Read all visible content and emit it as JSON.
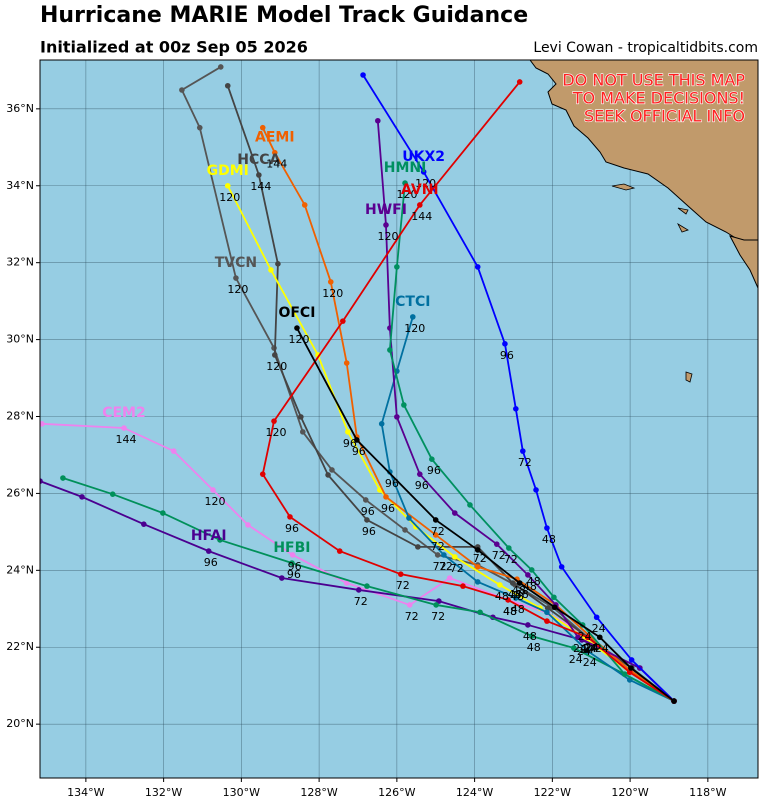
{
  "chart_data": {
    "type": "track",
    "title": "Hurricane MARIE Model Track Guidance",
    "subtitle": "Initialized at 00z Sep 05 2026",
    "credit": "Levi Cowan - tropicaltidbits.com",
    "annotations": [
      "DO NOT USE THIS MAP",
      "TO MAKE DECISIONS!",
      "SEEK OFFICIAL INFO"
    ],
    "xlim": [
      -135.18,
      -116.71
    ],
    "ylim": [
      18.6,
      37.27
    ],
    "grid": true,
    "xticks": [
      {
        "value": -134,
        "label": "134°W"
      },
      {
        "value": -132,
        "label": "132°W"
      },
      {
        "value": -130,
        "label": "130°W"
      },
      {
        "value": -128,
        "label": "128°W"
      },
      {
        "value": -126,
        "label": "126°W"
      },
      {
        "value": -124,
        "label": "124°W"
      },
      {
        "value": -122,
        "label": "122°W"
      },
      {
        "value": -120,
        "label": "120°W"
      },
      {
        "value": -118,
        "label": "118°W"
      }
    ],
    "yticks": [
      {
        "value": 20,
        "label": "20°N"
      },
      {
        "value": 22,
        "label": "22°N"
      },
      {
        "value": 24,
        "label": "24°N"
      },
      {
        "value": 26,
        "label": "26°N"
      },
      {
        "value": 28,
        "label": "28°N"
      },
      {
        "value": 30,
        "label": "30°N"
      },
      {
        "value": 32,
        "label": "32°N"
      },
      {
        "value": 34,
        "label": "34°N"
      },
      {
        "value": 36,
        "label": "36°N"
      }
    ],
    "series": [
      {
        "name": "CEM2",
        "color": "#ee82ee",
        "x": [
          -118.87,
          -119.96,
          -121.04,
          -122.12,
          -123.14,
          -124.64,
          -125.67,
          -127.29,
          -128.68,
          -129.83,
          -130.73,
          -131.74,
          -133.02,
          -135.13
        ],
        "values": [
          20.6,
          21.35,
          22.26,
          22.89,
          23.23,
          23.8,
          23.1,
          23.67,
          24.4,
          25.18,
          26.09,
          27.1,
          27.7,
          27.81
        ],
        "hour_labels": [
          null,
          null,
          "24",
          null,
          "48",
          null,
          "72",
          null,
          "96",
          null,
          "120",
          null,
          "144",
          null
        ]
      },
      {
        "name": "HFAI",
        "color": "#4b0090",
        "x": [
          -118.87,
          -119.75,
          -121.24,
          -122.63,
          -123.53,
          -124.92,
          -126.98,
          -128.96,
          -130.84,
          -132.51,
          -134.1,
          -135.18
        ],
        "values": [
          20.6,
          21.46,
          22.19,
          22.58,
          22.78,
          23.2,
          23.49,
          23.8,
          24.5,
          25.2,
          25.91,
          26.32
        ],
        "hour_labels": [
          null,
          null,
          "24",
          "48",
          null,
          null,
          "72",
          null,
          "96",
          null,
          null,
          null
        ]
      },
      {
        "name": "HFBI",
        "color": "#00905a",
        "x": [
          -118.87,
          -120.14,
          -121.45,
          -122.53,
          -123.86,
          -124.99,
          -126.77,
          -128.7,
          -130.55,
          -132.02,
          -133.31,
          -134.59
        ],
        "values": [
          20.6,
          21.3,
          21.98,
          22.29,
          22.91,
          23.1,
          23.59,
          24.19,
          24.79,
          25.49,
          25.98,
          26.4
        ],
        "hour_labels": [
          null,
          null,
          "24",
          "48",
          null,
          "72",
          null,
          "96",
          null,
          null,
          null,
          null
        ]
      },
      {
        "name": "TVCN",
        "color": "#555555",
        "x": [
          -118.87,
          -119.96,
          -121.09,
          -121.99,
          -122.96,
          -123.92,
          -124.95,
          -125.79,
          -126.8,
          -127.67,
          -128.42,
          -129.16,
          -130.14,
          -131.07,
          -131.53,
          -130.53
        ],
        "values": [
          20.6,
          21.46,
          22.26,
          23.04,
          23.62,
          24.14,
          24.4,
          25.05,
          25.83,
          26.61,
          27.6,
          29.78,
          31.6,
          35.51,
          36.49,
          37.09
        ],
        "hour_labels": [
          null,
          null,
          "24",
          null,
          "48",
          null,
          "72",
          null,
          "96",
          null,
          null,
          null,
          "120",
          null,
          null,
          null
        ]
      },
      {
        "name": "HCCA",
        "color": "#444444",
        "x": [
          -118.87,
          -119.96,
          -121.09,
          -122.12,
          -123.02,
          -123.92,
          -125.46,
          -126.77,
          -127.77,
          -128.47,
          -129.14,
          -129.06,
          -129.55,
          -130.35
        ],
        "values": [
          20.6,
          21.46,
          22.26,
          23.02,
          23.67,
          24.61,
          24.61,
          25.31,
          26.48,
          27.99,
          29.6,
          31.97,
          34.28,
          36.6
        ],
        "hour_labels": [
          null,
          null,
          "24",
          null,
          "48",
          "72",
          null,
          "96",
          null,
          null,
          "120",
          null,
          "144",
          null
        ]
      },
      {
        "name": "GDMI",
        "color": "#ffff00",
        "x": [
          -118.87,
          -120.01,
          -121.16,
          -122.32,
          -123.35,
          -124.51,
          -125.51,
          -126.44,
          -127.26,
          -128.03,
          -129.24,
          -130.35
        ],
        "values": [
          20.6,
          21.35,
          22.24,
          23.02,
          23.62,
          24.35,
          25.13,
          26.09,
          27.6,
          29.6,
          31.81,
          34.0
        ],
        "hour_labels": [
          null,
          null,
          "24",
          null,
          "48",
          "72",
          null,
          null,
          "96",
          null,
          null,
          "120"
        ]
      },
      {
        "name": "AEMI",
        "color": "#f06000",
        "x": [
          -118.87,
          -120.01,
          -121.04,
          -121.91,
          -122.91,
          -123.92,
          -125.0,
          -126.28,
          -127.03,
          -127.29,
          -127.7,
          -128.37,
          -129.14,
          -129.45
        ],
        "values": [
          20.6,
          21.41,
          22.29,
          23.1,
          23.77,
          24.09,
          24.92,
          25.91,
          27.47,
          29.39,
          31.5,
          33.5,
          34.86,
          35.51
        ],
        "hour_labels": [
          null,
          null,
          "24",
          null,
          "48",
          null,
          "72",
          "96",
          null,
          null,
          "120",
          null,
          "144",
          null
        ]
      },
      {
        "name": "CTCI",
        "color": "#0070a0",
        "x": [
          -118.87,
          -120.01,
          -121.09,
          -122.14,
          -122.94,
          -123.92,
          -124.79,
          -125.69,
          -126.18,
          -126.39,
          -126.0,
          -125.59
        ],
        "values": [
          20.6,
          21.15,
          21.9,
          22.91,
          23.28,
          23.7,
          24.4,
          25.36,
          26.56,
          27.81,
          29.18,
          30.59
        ],
        "hour_labels": [
          null,
          null,
          "24",
          null,
          "48",
          null,
          "72",
          null,
          "96",
          null,
          null,
          "120"
        ]
      },
      {
        "name": "HWFI",
        "color": "#5a0090",
        "x": [
          -118.87,
          -119.75,
          -121.34,
          -121.91,
          -122.63,
          -123.43,
          -124.51,
          -125.41,
          -126.0,
          -126.18,
          -126.28,
          -126.49
        ],
        "values": [
          20.6,
          21.46,
          22.26,
          23.1,
          23.88,
          24.68,
          25.49,
          26.5,
          27.99,
          30.3,
          32.98,
          35.69
        ],
        "hour_labels": [
          null,
          null,
          "24",
          null,
          "48",
          "72",
          null,
          "96",
          null,
          null,
          "120",
          null
        ]
      },
      {
        "name": "HMNI",
        "color": "#009060",
        "x": [
          -118.87,
          -120.14,
          -121.22,
          -121.96,
          -122.53,
          -123.12,
          -124.12,
          -125.1,
          -125.82,
          -126.18,
          -126.0,
          -125.79
        ],
        "values": [
          20.6,
          21.3,
          22.58,
          23.3,
          24.01,
          24.58,
          25.7,
          26.89,
          28.3,
          29.73,
          31.89,
          34.07
        ],
        "hour_labels": [
          null,
          null,
          "24",
          null,
          "48",
          "72",
          null,
          "96",
          null,
          null,
          null,
          "120"
        ]
      },
      {
        "name": "UKX2",
        "color": "#0000ff",
        "x": [
          -118.87,
          -119.96,
          -120.86,
          -121.76,
          -122.14,
          -122.42,
          -122.76,
          -122.94,
          -123.22,
          -123.92,
          -125.31,
          -126.87
        ],
        "values": [
          20.6,
          21.67,
          22.78,
          24.09,
          25.1,
          26.09,
          27.1,
          28.2,
          29.89,
          31.89,
          34.36,
          36.88
        ],
        "hour_labels": [
          null,
          null,
          "24",
          null,
          "48",
          null,
          "72",
          null,
          "96",
          null,
          "120",
          null
        ]
      },
      {
        "name": "AVNI",
        "color": "#e00000",
        "x": [
          -118.87,
          -120.01,
          -121.09,
          -122.14,
          -123.14,
          -124.3,
          -125.9,
          -127.47,
          -128.75,
          -129.45,
          -129.16,
          -127.39,
          -125.41,
          -122.84
        ],
        "values": [
          20.6,
          21.35,
          22.26,
          22.68,
          23.23,
          23.59,
          23.9,
          24.5,
          25.39,
          26.5,
          27.88,
          30.48,
          33.5,
          36.7
        ],
        "hour_labels": [
          null,
          null,
          "24",
          null,
          "48",
          null,
          "72",
          null,
          "96",
          null,
          "120",
          null,
          "144",
          null
        ]
      },
      {
        "name": "OFCI",
        "color": "#000000",
        "x": [
          -118.87,
          -119.98,
          -120.78,
          -121.94,
          -122.84,
          -123.92,
          -125.0,
          -127.03,
          -128.57
        ],
        "values": [
          20.6,
          21.46,
          22.26,
          23.04,
          23.67,
          24.53,
          25.31,
          27.39,
          30.3
        ],
        "hour_labels": [
          null,
          null,
          "24",
          null,
          "48",
          null,
          "72",
          "96",
          "120"
        ]
      }
    ]
  }
}
